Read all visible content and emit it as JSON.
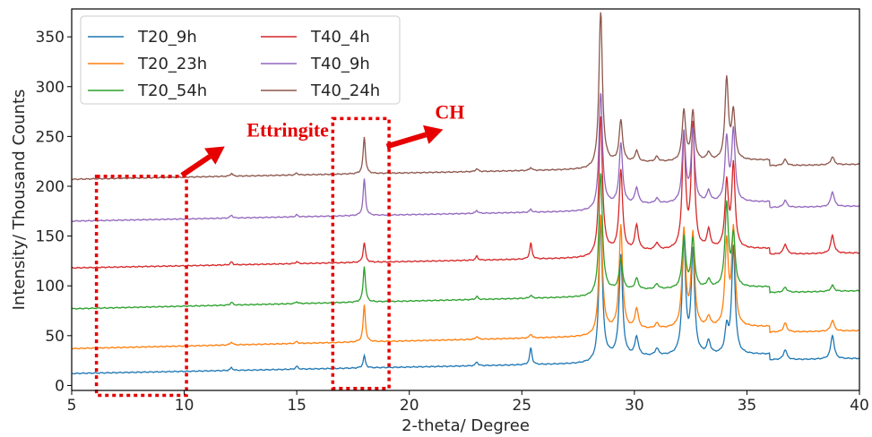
{
  "chart_data": {
    "type": "line",
    "title": "",
    "xlabel": "2-theta/ Degree",
    "ylabel": "Intensity/ Thousand Counts",
    "xlim": [
      5,
      40
    ],
    "ylim": [
      -5,
      378
    ],
    "xticks": [
      5,
      10,
      15,
      20,
      25,
      30,
      35,
      40
    ],
    "yticks": [
      0,
      50,
      100,
      150,
      200,
      250,
      300,
      350
    ],
    "grid": false,
    "legend_position": "top-left",
    "peaks": [
      12.1,
      15.0,
      18.0,
      23.0,
      25.4,
      28.5,
      29.4,
      30.1,
      31.0,
      32.2,
      32.6,
      33.3,
      34.1,
      34.4,
      36.7,
      38.8
    ],
    "series": [
      {
        "name": "T20_9h",
        "color": "#1f77b4",
        "baseline_start": 12,
        "baseline_end": 27,
        "peak_heights": [
          3,
          3,
          12,
          4,
          17,
          140,
          101,
          19,
          7,
          115,
          103,
          13,
          25,
          108,
          10,
          24
        ]
      },
      {
        "name": "T20_23h",
        "color": "#ff7f0e",
        "baseline_start": 37,
        "baseline_end": 55,
        "peak_heights": [
          3,
          2,
          37,
          3,
          4,
          121,
          104,
          20,
          5,
          98,
          93,
          10,
          84,
          97,
          9,
          11
        ]
      },
      {
        "name": "T20_54h",
        "color": "#2ca02c",
        "baseline_start": 77,
        "baseline_end": 95,
        "peak_heights": [
          3,
          2,
          36,
          3,
          3,
          123,
          30,
          11,
          5,
          52,
          49,
          8,
          83,
          51,
          5,
          6
        ]
      },
      {
        "name": "T40_4h",
        "color": "#d62728",
        "baseline_start": 118,
        "baseline_end": 133,
        "peak_heights": [
          3,
          2,
          20,
          4,
          16,
          141,
          81,
          25,
          7,
          113,
          124,
          18,
          65,
          83,
          10,
          18
        ]
      },
      {
        "name": "T40_9h",
        "color": "#9467bd",
        "baseline_start": 165,
        "baseline_end": 180,
        "peak_heights": [
          3,
          2,
          37,
          3,
          3,
          118,
          61,
          16,
          5,
          70,
          73,
          11,
          63,
          71,
          7,
          15
        ]
      },
      {
        "name": "T40_24h",
        "color": "#8c564b",
        "baseline_start": 207,
        "baseline_end": 222,
        "peak_heights": [
          3,
          2,
          37,
          3,
          3,
          157,
          42,
          11,
          5,
          51,
          49,
          8,
          82,
          48,
          6,
          8
        ]
      }
    ],
    "annotations": [
      {
        "text": "Ettringite",
        "box_x": [
          6.1,
          10.1
        ],
        "box_y": [
          -10,
          210
        ],
        "arrow_from": [
          9.9,
          211
        ],
        "arrow_to": [
          11.8,
          240
        ]
      },
      {
        "text": "CH",
        "box_x": [
          16.6,
          19.1
        ],
        "box_y": [
          -3,
          268
        ],
        "arrow_from": [
          19.0,
          240
        ],
        "arrow_to": [
          21.5,
          257
        ]
      }
    ]
  }
}
